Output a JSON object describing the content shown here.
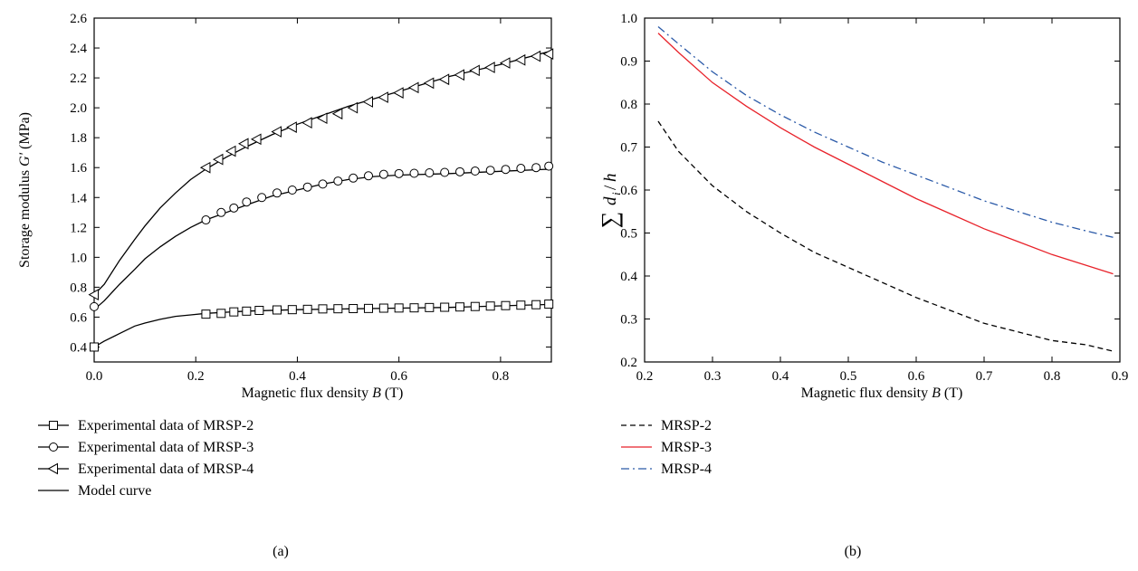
{
  "chart_data": [
    {
      "type": "line",
      "panel_label": "(a)",
      "xlabel_main": "Magnetic flux density ",
      "xlabel_var": "B",
      "xlabel_unit": " (T)",
      "ylabel_main": "Storage modulus ",
      "ylabel_var": "G'",
      "ylabel_unit": " (MPa)",
      "xlim": [
        0.0,
        0.9
      ],
      "ylim": [
        0.3,
        2.6
      ],
      "xticks": [
        "0.0",
        "0.2",
        "0.4",
        "0.6",
        "0.8"
      ],
      "xtick_values": [
        0.0,
        0.2,
        0.4,
        0.6,
        0.8
      ],
      "yticks": [
        "0.4",
        "0.6",
        "0.8",
        "1.0",
        "1.2",
        "1.4",
        "1.6",
        "1.8",
        "2.0",
        "2.2",
        "2.4",
        "2.6"
      ],
      "ytick_values": [
        0.4,
        0.6,
        0.8,
        1.0,
        1.2,
        1.4,
        1.6,
        1.8,
        2.0,
        2.2,
        2.4,
        2.6
      ],
      "series": [
        {
          "name": "Experimental data of MRSP-2",
          "marker": "square",
          "x": [
            0.0,
            0.22,
            0.25,
            0.275,
            0.3,
            0.325,
            0.36,
            0.39,
            0.42,
            0.45,
            0.48,
            0.51,
            0.54,
            0.57,
            0.6,
            0.63,
            0.66,
            0.69,
            0.72,
            0.75,
            0.78,
            0.81,
            0.84,
            0.87,
            0.895
          ],
          "y": [
            0.4,
            0.62,
            0.625,
            0.635,
            0.64,
            0.645,
            0.648,
            0.65,
            0.652,
            0.655,
            0.656,
            0.657,
            0.658,
            0.66,
            0.661,
            0.662,
            0.664,
            0.666,
            0.668,
            0.671,
            0.674,
            0.677,
            0.68,
            0.683,
            0.687
          ]
        },
        {
          "name": "Experimental data of MRSP-3",
          "marker": "circle",
          "x": [
            0.0,
            0.22,
            0.25,
            0.275,
            0.3,
            0.33,
            0.36,
            0.39,
            0.42,
            0.45,
            0.48,
            0.51,
            0.54,
            0.57,
            0.6,
            0.63,
            0.66,
            0.69,
            0.72,
            0.75,
            0.78,
            0.81,
            0.84,
            0.87,
            0.895
          ],
          "y": [
            0.67,
            1.25,
            1.3,
            1.33,
            1.37,
            1.4,
            1.43,
            1.45,
            1.47,
            1.49,
            1.51,
            1.53,
            1.545,
            1.555,
            1.56,
            1.562,
            1.565,
            1.568,
            1.572,
            1.577,
            1.582,
            1.588,
            1.595,
            1.6,
            1.61
          ]
        },
        {
          "name": "Experimental data of MRSP-4",
          "marker": "triangle-left",
          "x": [
            0.0,
            0.22,
            0.245,
            0.27,
            0.295,
            0.32,
            0.36,
            0.39,
            0.42,
            0.45,
            0.48,
            0.51,
            0.54,
            0.57,
            0.6,
            0.63,
            0.66,
            0.69,
            0.72,
            0.75,
            0.78,
            0.81,
            0.84,
            0.87,
            0.895
          ],
          "y": [
            0.75,
            1.6,
            1.655,
            1.71,
            1.76,
            1.79,
            1.84,
            1.87,
            1.9,
            1.93,
            1.96,
            2.0,
            2.04,
            2.07,
            2.1,
            2.135,
            2.165,
            2.19,
            2.22,
            2.25,
            2.27,
            2.3,
            2.32,
            2.345,
            2.36
          ]
        },
        {
          "name": "Model curve",
          "marker": "none",
          "curves": [
            {
              "x": [
                0.0,
                0.02,
                0.05,
                0.08,
                0.1,
                0.13,
                0.16,
                0.19,
                0.22,
                0.3,
                0.4,
                0.5,
                0.6,
                0.7,
                0.8,
                0.9
              ],
              "y": [
                0.4,
                0.44,
                0.49,
                0.54,
                0.56,
                0.585,
                0.605,
                0.615,
                0.625,
                0.64,
                0.65,
                0.655,
                0.66,
                0.665,
                0.675,
                0.685
              ]
            },
            {
              "x": [
                0.0,
                0.02,
                0.05,
                0.08,
                0.1,
                0.13,
                0.16,
                0.19,
                0.22,
                0.26,
                0.3,
                0.35,
                0.4,
                0.45,
                0.5,
                0.55,
                0.6,
                0.7,
                0.8,
                0.9
              ],
              "y": [
                0.65,
                0.71,
                0.82,
                0.92,
                0.99,
                1.07,
                1.14,
                1.2,
                1.25,
                1.3,
                1.35,
                1.41,
                1.45,
                1.49,
                1.52,
                1.54,
                1.55,
                1.56,
                1.575,
                1.59
              ]
            },
            {
              "x": [
                0.0,
                0.02,
                0.05,
                0.08,
                0.1,
                0.13,
                0.16,
                0.19,
                0.22,
                0.26,
                0.3,
                0.35,
                0.4,
                0.45,
                0.5,
                0.55,
                0.6,
                0.7,
                0.8,
                0.9
              ],
              "y": [
                0.75,
                0.82,
                0.98,
                1.12,
                1.21,
                1.33,
                1.43,
                1.52,
                1.59,
                1.67,
                1.74,
                1.82,
                1.89,
                1.95,
                2.01,
                2.06,
                2.11,
                2.21,
                2.29,
                2.38
              ]
            }
          ]
        }
      ]
    },
    {
      "type": "line",
      "panel_label": "(b)",
      "xlabel_main": "Magnetic flux density ",
      "xlabel_var": "B",
      "xlabel_unit": " (T)",
      "ylabel": "∑ d_i/h",
      "xlim": [
        0.2,
        0.9
      ],
      "ylim": [
        0.2,
        1.0
      ],
      "xticks": [
        "0.2",
        "0.3",
        "0.4",
        "0.5",
        "0.6",
        "0.7",
        "0.8",
        "0.9"
      ],
      "xtick_values": [
        0.2,
        0.3,
        0.4,
        0.5,
        0.6,
        0.7,
        0.8,
        0.9
      ],
      "yticks": [
        "0.2",
        "0.3",
        "0.4",
        "0.5",
        "0.6",
        "0.7",
        "0.8",
        "0.9",
        "1.0"
      ],
      "ytick_values": [
        0.2,
        0.3,
        0.4,
        0.5,
        0.6,
        0.7,
        0.8,
        0.9,
        1.0
      ],
      "series": [
        {
          "name": "MRSP-2",
          "color": "#000000",
          "dash": "dash",
          "x": [
            0.22,
            0.25,
            0.3,
            0.35,
            0.4,
            0.45,
            0.5,
            0.55,
            0.6,
            0.65,
            0.7,
            0.75,
            0.8,
            0.85,
            0.89
          ],
          "y": [
            0.76,
            0.69,
            0.61,
            0.55,
            0.5,
            0.455,
            0.42,
            0.385,
            0.35,
            0.32,
            0.29,
            0.27,
            0.25,
            0.24,
            0.225
          ]
        },
        {
          "name": "MRSP-3",
          "color": "#e8222a",
          "dash": "solid",
          "x": [
            0.22,
            0.25,
            0.3,
            0.35,
            0.4,
            0.45,
            0.5,
            0.55,
            0.6,
            0.65,
            0.7,
            0.75,
            0.8,
            0.85,
            0.89
          ],
          "y": [
            0.965,
            0.92,
            0.85,
            0.795,
            0.745,
            0.7,
            0.66,
            0.62,
            0.58,
            0.545,
            0.51,
            0.48,
            0.45,
            0.425,
            0.405
          ]
        },
        {
          "name": "MRSP-4",
          "color": "#2b5aa8",
          "dash": "dashdot",
          "x": [
            0.22,
            0.25,
            0.3,
            0.35,
            0.4,
            0.45,
            0.5,
            0.55,
            0.6,
            0.65,
            0.7,
            0.75,
            0.8,
            0.85,
            0.89
          ],
          "y": [
            0.98,
            0.94,
            0.875,
            0.82,
            0.775,
            0.735,
            0.7,
            0.665,
            0.635,
            0.605,
            0.575,
            0.55,
            0.525,
            0.505,
            0.49
          ]
        }
      ]
    }
  ]
}
